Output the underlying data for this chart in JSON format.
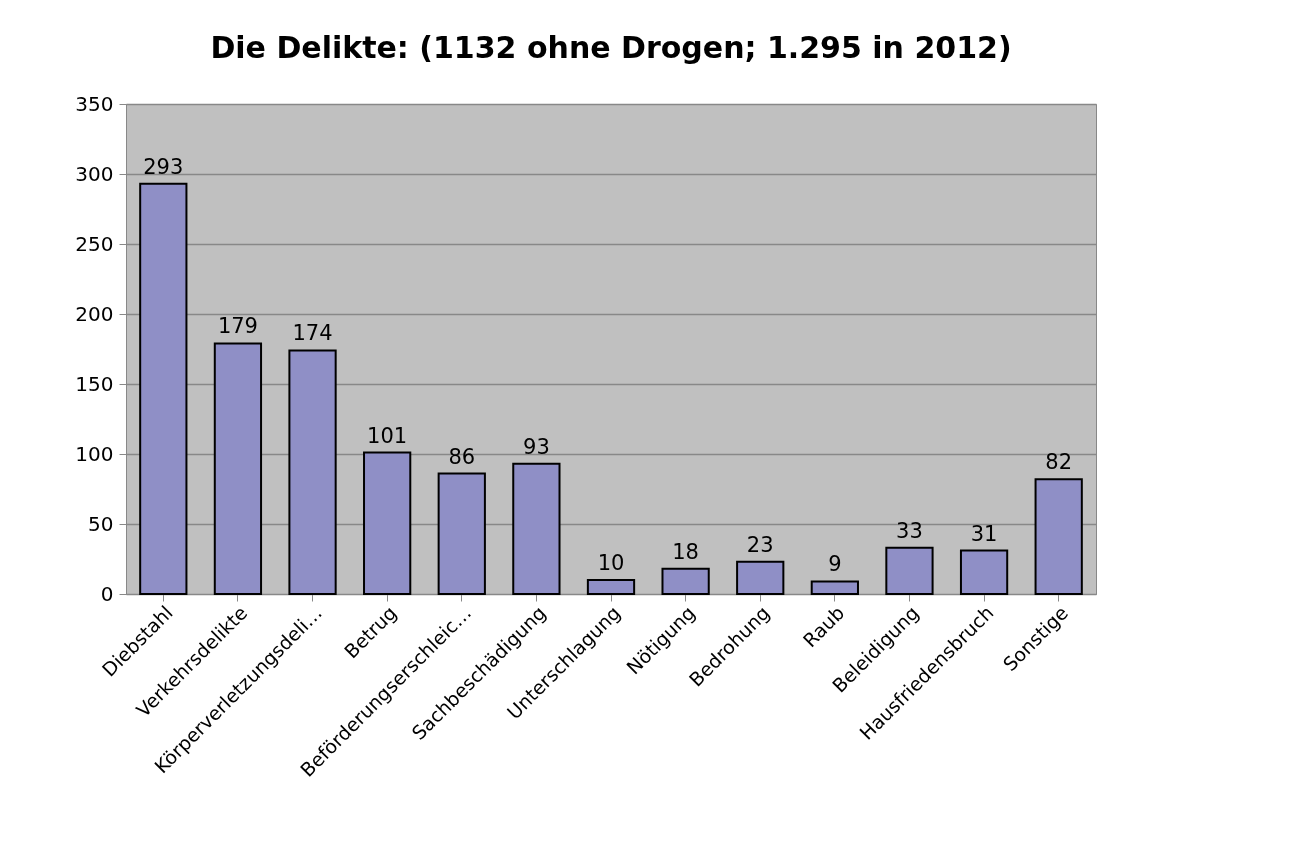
{
  "chart_data": {
    "type": "bar",
    "title": "Die Delikte: (1132 ohne Drogen; 1.295 in 2012)",
    "categories": [
      "Diebstahl",
      "Verkehrsdelikte",
      "Körperverletzungsdeli…",
      "Betrug",
      "Beförderungserschleic…",
      "Sachbeschädigung",
      "Unterschlagung",
      "Nötigung",
      "Bedrohung",
      "Raub",
      "Beleidigung",
      "Hausfriedensbruch",
      "Sonstige"
    ],
    "values": [
      293,
      179,
      174,
      101,
      86,
      93,
      10,
      18,
      23,
      9,
      33,
      31,
      82
    ],
    "color": "#8f8fc6",
    "ylim": [
      0,
      350
    ],
    "yticks": [
      0,
      50,
      100,
      150,
      200,
      250,
      300,
      350
    ],
    "grid": "y",
    "data_labels": true
  }
}
